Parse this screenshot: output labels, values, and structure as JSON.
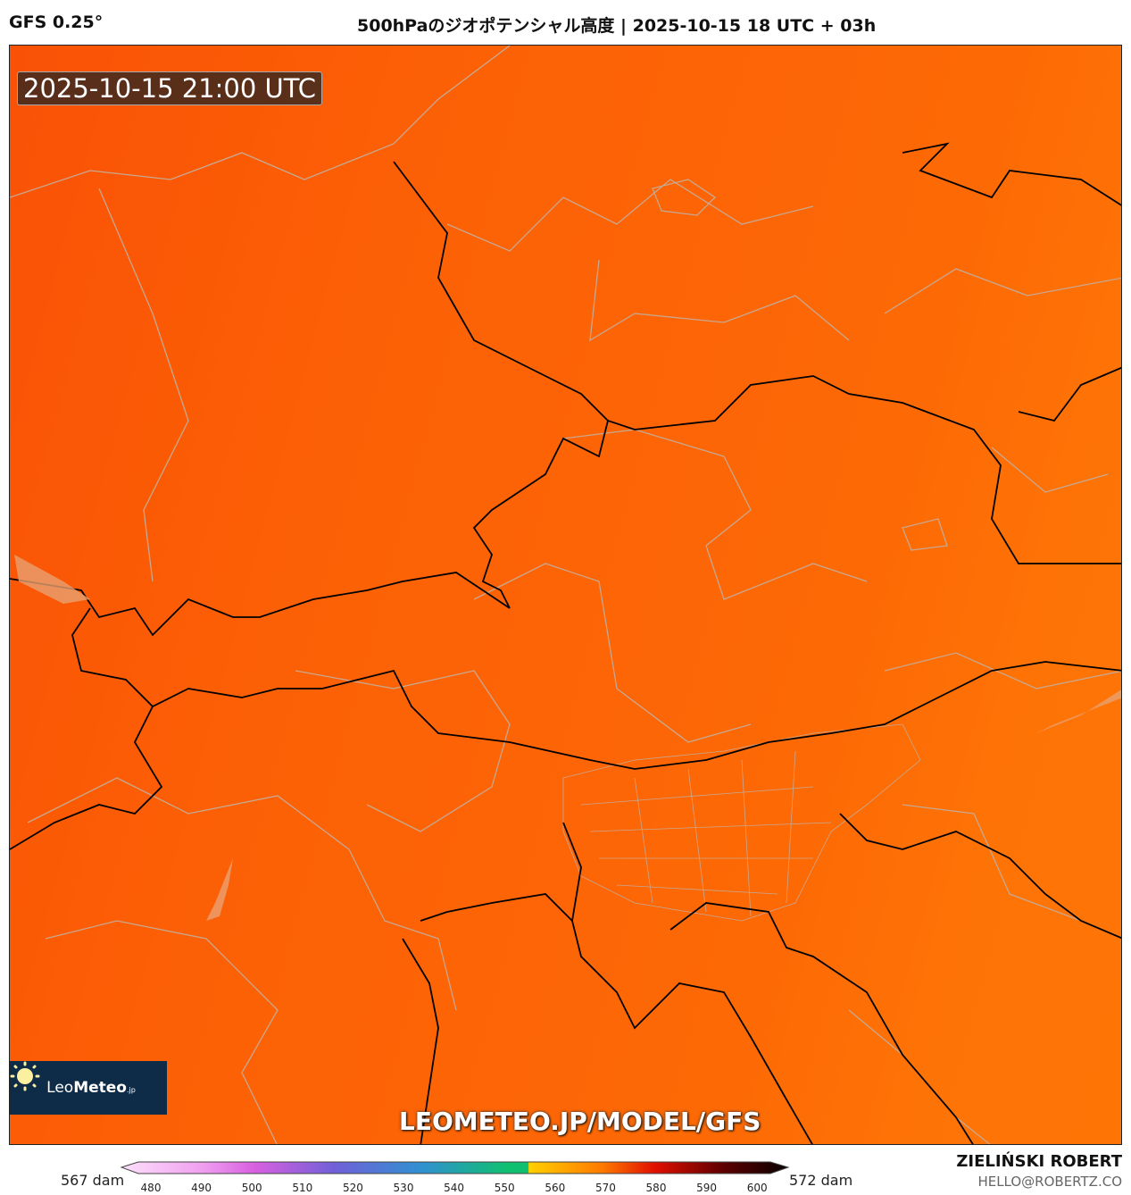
{
  "header": {
    "model": "GFS 0.25°",
    "title": "500hPaのジオポテンシャル高度 | 2025-10-15 18 UTC + 03h"
  },
  "map": {
    "valid_time": "2025-10-15 21:00 UTC",
    "watermark": "LEOMETEO.JP/MODEL/GFS",
    "logo": {
      "text_light": "Leo",
      "text_bold": "Meteo",
      "suffix": ".jp"
    },
    "min_value": "567 dam",
    "max_value": "572 dam"
  },
  "colorbar": {
    "ticks": [
      "480",
      "490",
      "500",
      "510",
      "520",
      "530",
      "540",
      "550",
      "560",
      "570",
      "580",
      "590",
      "600"
    ],
    "colors": [
      "#fcd6fa",
      "#e070e0",
      "#7060d8",
      "#3090d0",
      "#10c070",
      "#ffd000",
      "#ff8000",
      "#e01000",
      "#700000",
      "#100000"
    ]
  },
  "credit": {
    "name": "ZIELIŃSKI ROBERT",
    "email": "HELLO@ROBERTZ.CO"
  }
}
